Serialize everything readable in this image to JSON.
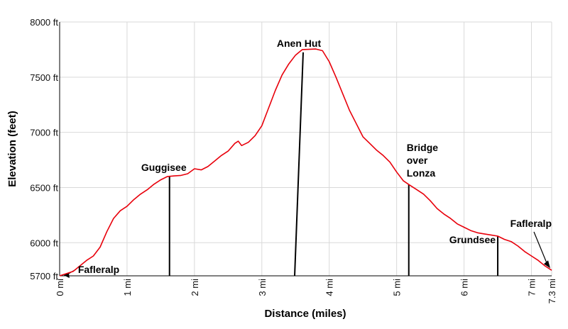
{
  "chart_data": {
    "type": "line",
    "xlabel": "Distance (miles)",
    "ylabel": "Elevation (feet)",
    "xlim": [
      0,
      7.3
    ],
    "ylim": [
      5700,
      8000
    ],
    "grid": true,
    "x_ticks": [
      {
        "value": 0,
        "label": "0 mi"
      },
      {
        "value": 1,
        "label": "1 mi"
      },
      {
        "value": 2,
        "label": "2 mi"
      },
      {
        "value": 3,
        "label": "3 mi"
      },
      {
        "value": 4,
        "label": "4 mi"
      },
      {
        "value": 5,
        "label": "5 mi"
      },
      {
        "value": 6,
        "label": "6 mi"
      },
      {
        "value": 7,
        "label": "7 mi"
      },
      {
        "value": 7.3,
        "label": "7.3 mi"
      }
    ],
    "y_ticks": [
      {
        "value": 5700,
        "label": "5700 ft"
      },
      {
        "value": 6000,
        "label": "6000 ft"
      },
      {
        "value": 6500,
        "label": "6500 ft"
      },
      {
        "value": 7000,
        "label": "7000 ft"
      },
      {
        "value": 7500,
        "label": "7500 ft"
      },
      {
        "value": 8000,
        "label": "8000 ft"
      }
    ],
    "line_color": "#e8000b",
    "series": [
      {
        "x": [
          0,
          0.1,
          0.2,
          0.3,
          0.4,
          0.5,
          0.6,
          0.7,
          0.8,
          0.9,
          1.0,
          1.1,
          1.2,
          1.3,
          1.4,
          1.5,
          1.6,
          1.7,
          1.8,
          1.9,
          2.0,
          2.1,
          2.2,
          2.3,
          2.4,
          2.5,
          2.6,
          2.65,
          2.7,
          2.8,
          2.9,
          3.0,
          3.1,
          3.2,
          3.3,
          3.4,
          3.5,
          3.6,
          3.7,
          3.8,
          3.9,
          4.0,
          4.1,
          4.2,
          4.3,
          4.4,
          4.5,
          4.6,
          4.7,
          4.8,
          4.9,
          5.0,
          5.1,
          5.2,
          5.3,
          5.4,
          5.5,
          5.6,
          5.7,
          5.8,
          5.9,
          6.0,
          6.1,
          6.2,
          6.3,
          6.4,
          6.5,
          6.6,
          6.7,
          6.8,
          6.9,
          7.0,
          7.1,
          7.2,
          7.3
        ],
        "y": [
          5700,
          5720,
          5740,
          5790,
          5840,
          5880,
          5960,
          6100,
          6220,
          6290,
          6330,
          6390,
          6440,
          6480,
          6530,
          6570,
          6600,
          6605,
          6610,
          6625,
          6670,
          6660,
          6690,
          6740,
          6790,
          6830,
          6900,
          6920,
          6880,
          6910,
          6970,
          7060,
          7220,
          7380,
          7520,
          7620,
          7700,
          7750,
          7752,
          7755,
          7740,
          7640,
          7500,
          7350,
          7200,
          7080,
          6960,
          6900,
          6840,
          6790,
          6730,
          6640,
          6560,
          6520,
          6480,
          6440,
          6380,
          6310,
          6260,
          6220,
          6170,
          6140,
          6110,
          6090,
          6080,
          6070,
          6060,
          6030,
          6010,
          5970,
          5920,
          5880,
          5840,
          5790,
          5750
        ]
      }
    ],
    "annotations": [
      {
        "lines": [
          "Fafleralp"
        ],
        "x": 0.03
      },
      {
        "lines": [
          "Guggisee"
        ],
        "x": 1.63
      },
      {
        "lines": [
          "Anen Hut"
        ],
        "x": 3.55
      },
      {
        "lines": [
          "Bridge",
          "over",
          "Lonza"
        ],
        "x": 5.18
      },
      {
        "lines": [
          "Grundsee"
        ],
        "x": 6.5
      },
      {
        "lines": [
          "Fafleralp"
        ],
        "x": 7.3
      }
    ]
  }
}
